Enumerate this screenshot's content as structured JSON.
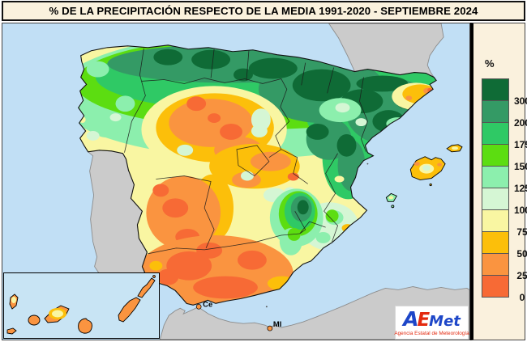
{
  "title": "% DE LA PRECIPITACIÓN RESPECTO DE LA MEDIA 1991-2020 - SEPTIEMBRE 2024",
  "legend": {
    "unit": "%",
    "stops": [
      {
        "label": "300",
        "color_key": "c300"
      },
      {
        "label": "200",
        "color_key": "c200"
      },
      {
        "label": "175",
        "color_key": "c175"
      },
      {
        "label": "150",
        "color_key": "c150"
      },
      {
        "label": "125",
        "color_key": "c125"
      },
      {
        "label": "100",
        "color_key": "c100"
      },
      {
        "label": "75",
        "color_key": "c75"
      },
      {
        "label": "50",
        "color_key": "c50"
      },
      {
        "label": "25",
        "color_key": "c25"
      },
      {
        "label": "0",
        "color_key": "c0"
      }
    ]
  },
  "palette": {
    "c300": "#0f6b36",
    "c200": "#349a65",
    "c175": "#2fc965",
    "c150": "#5cdd11",
    "c125": "#8cefad",
    "c100": "#d5f6d4",
    "c75": "#f9f6a2",
    "c50": "#fcbf0a",
    "c25": "#fa9440",
    "c0": "#f76a35",
    "sea": "#c1dff5",
    "inset_sea": "#c8e4f4",
    "land": "#cbcbcb",
    "land_border": "#8c8c8c",
    "coast": "#111111",
    "panel": "#faf1dd"
  },
  "map": {
    "cities": [
      {
        "code": "Ce"
      },
      {
        "code": "MI"
      }
    ]
  },
  "map_summary": [
    {
      "region": "Cantabrian coast and upper Ebro",
      "percent_of_average": "200-300+"
    },
    {
      "region": "Galicia",
      "percent_of_average": "125-200"
    },
    {
      "region": "Pyrenees and inland Catalonia",
      "percent_of_average": "200-300"
    },
    {
      "region": "Girona coastal area",
      "percent_of_average": "25-75"
    },
    {
      "region": "Castilla y León (central)",
      "percent_of_average": "0-50"
    },
    {
      "region": "Madrid-Toledo belt",
      "percent_of_average": "25-75"
    },
    {
      "region": "Extremadura",
      "percent_of_average": "0-25"
    },
    {
      "region": "Andalusia",
      "percent_of_average": "0-25"
    },
    {
      "region": "Cazorla-Segura (SE interior)",
      "percent_of_average": "175-300"
    },
    {
      "region": "Teruel-Valencia",
      "percent_of_average": "150-300"
    },
    {
      "region": "Murcia-Alicante",
      "percent_of_average": "75-125"
    },
    {
      "region": "Balearic Islands",
      "percent_of_average": "50-100"
    },
    {
      "region": "Canary Islands",
      "percent_of_average": "0-25"
    }
  ],
  "logo": {
    "a": "A",
    "e": "E",
    "met": "Met",
    "subtitle": "Agencia Estatal de Meteorología"
  }
}
